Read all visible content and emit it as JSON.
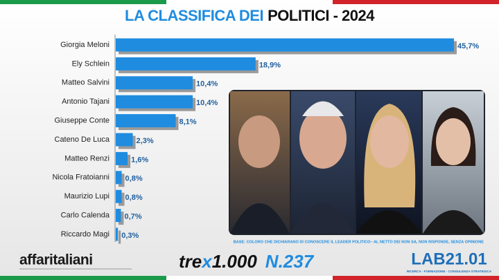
{
  "chart_data": {
    "type": "bar",
    "orientation": "horizontal",
    "title": [
      "LA CLASSIFICA DEI",
      "POLITICI - 2024"
    ],
    "categories": [
      "Giorgia Meloni",
      "Ely Schlein",
      "Matteo Salvini",
      "Antonio Tajani",
      "Giuseppe Conte",
      "Cateno De Luca",
      "Matteo Renzi",
      "Nicola Fratoianni",
      "Maurizio Lupi",
      "Carlo Calenda",
      "Riccardo Magi"
    ],
    "values": [
      45.7,
      18.9,
      10.4,
      10.4,
      8.1,
      2.3,
      1.6,
      0.8,
      0.8,
      0.7,
      0.3
    ],
    "value_labels": [
      "45,7%",
      "18,9%",
      "10,4%",
      "10,4%",
      "8,1%",
      "2,3%",
      "1,6%",
      "0,8%",
      "0,8%",
      "0,7%",
      "0,3%"
    ],
    "color": "#1f8ce0",
    "note": "BASE: COLORO CHE DICHIARANO DI CONOSCERE IL LEADER POLITICO– AL NETTO DEI NON SA, NON RISPONDE, SENZA OPINIONE"
  },
  "footer": {
    "left_logo": "affaritaliani",
    "middle_logo": [
      "tre",
      "x",
      "1.000",
      "N.237"
    ],
    "right_logo": "LAB21.01",
    "right_tagline": "RICERCA - FORMAZIONE - CONSULENZA STRATEGICA"
  }
}
